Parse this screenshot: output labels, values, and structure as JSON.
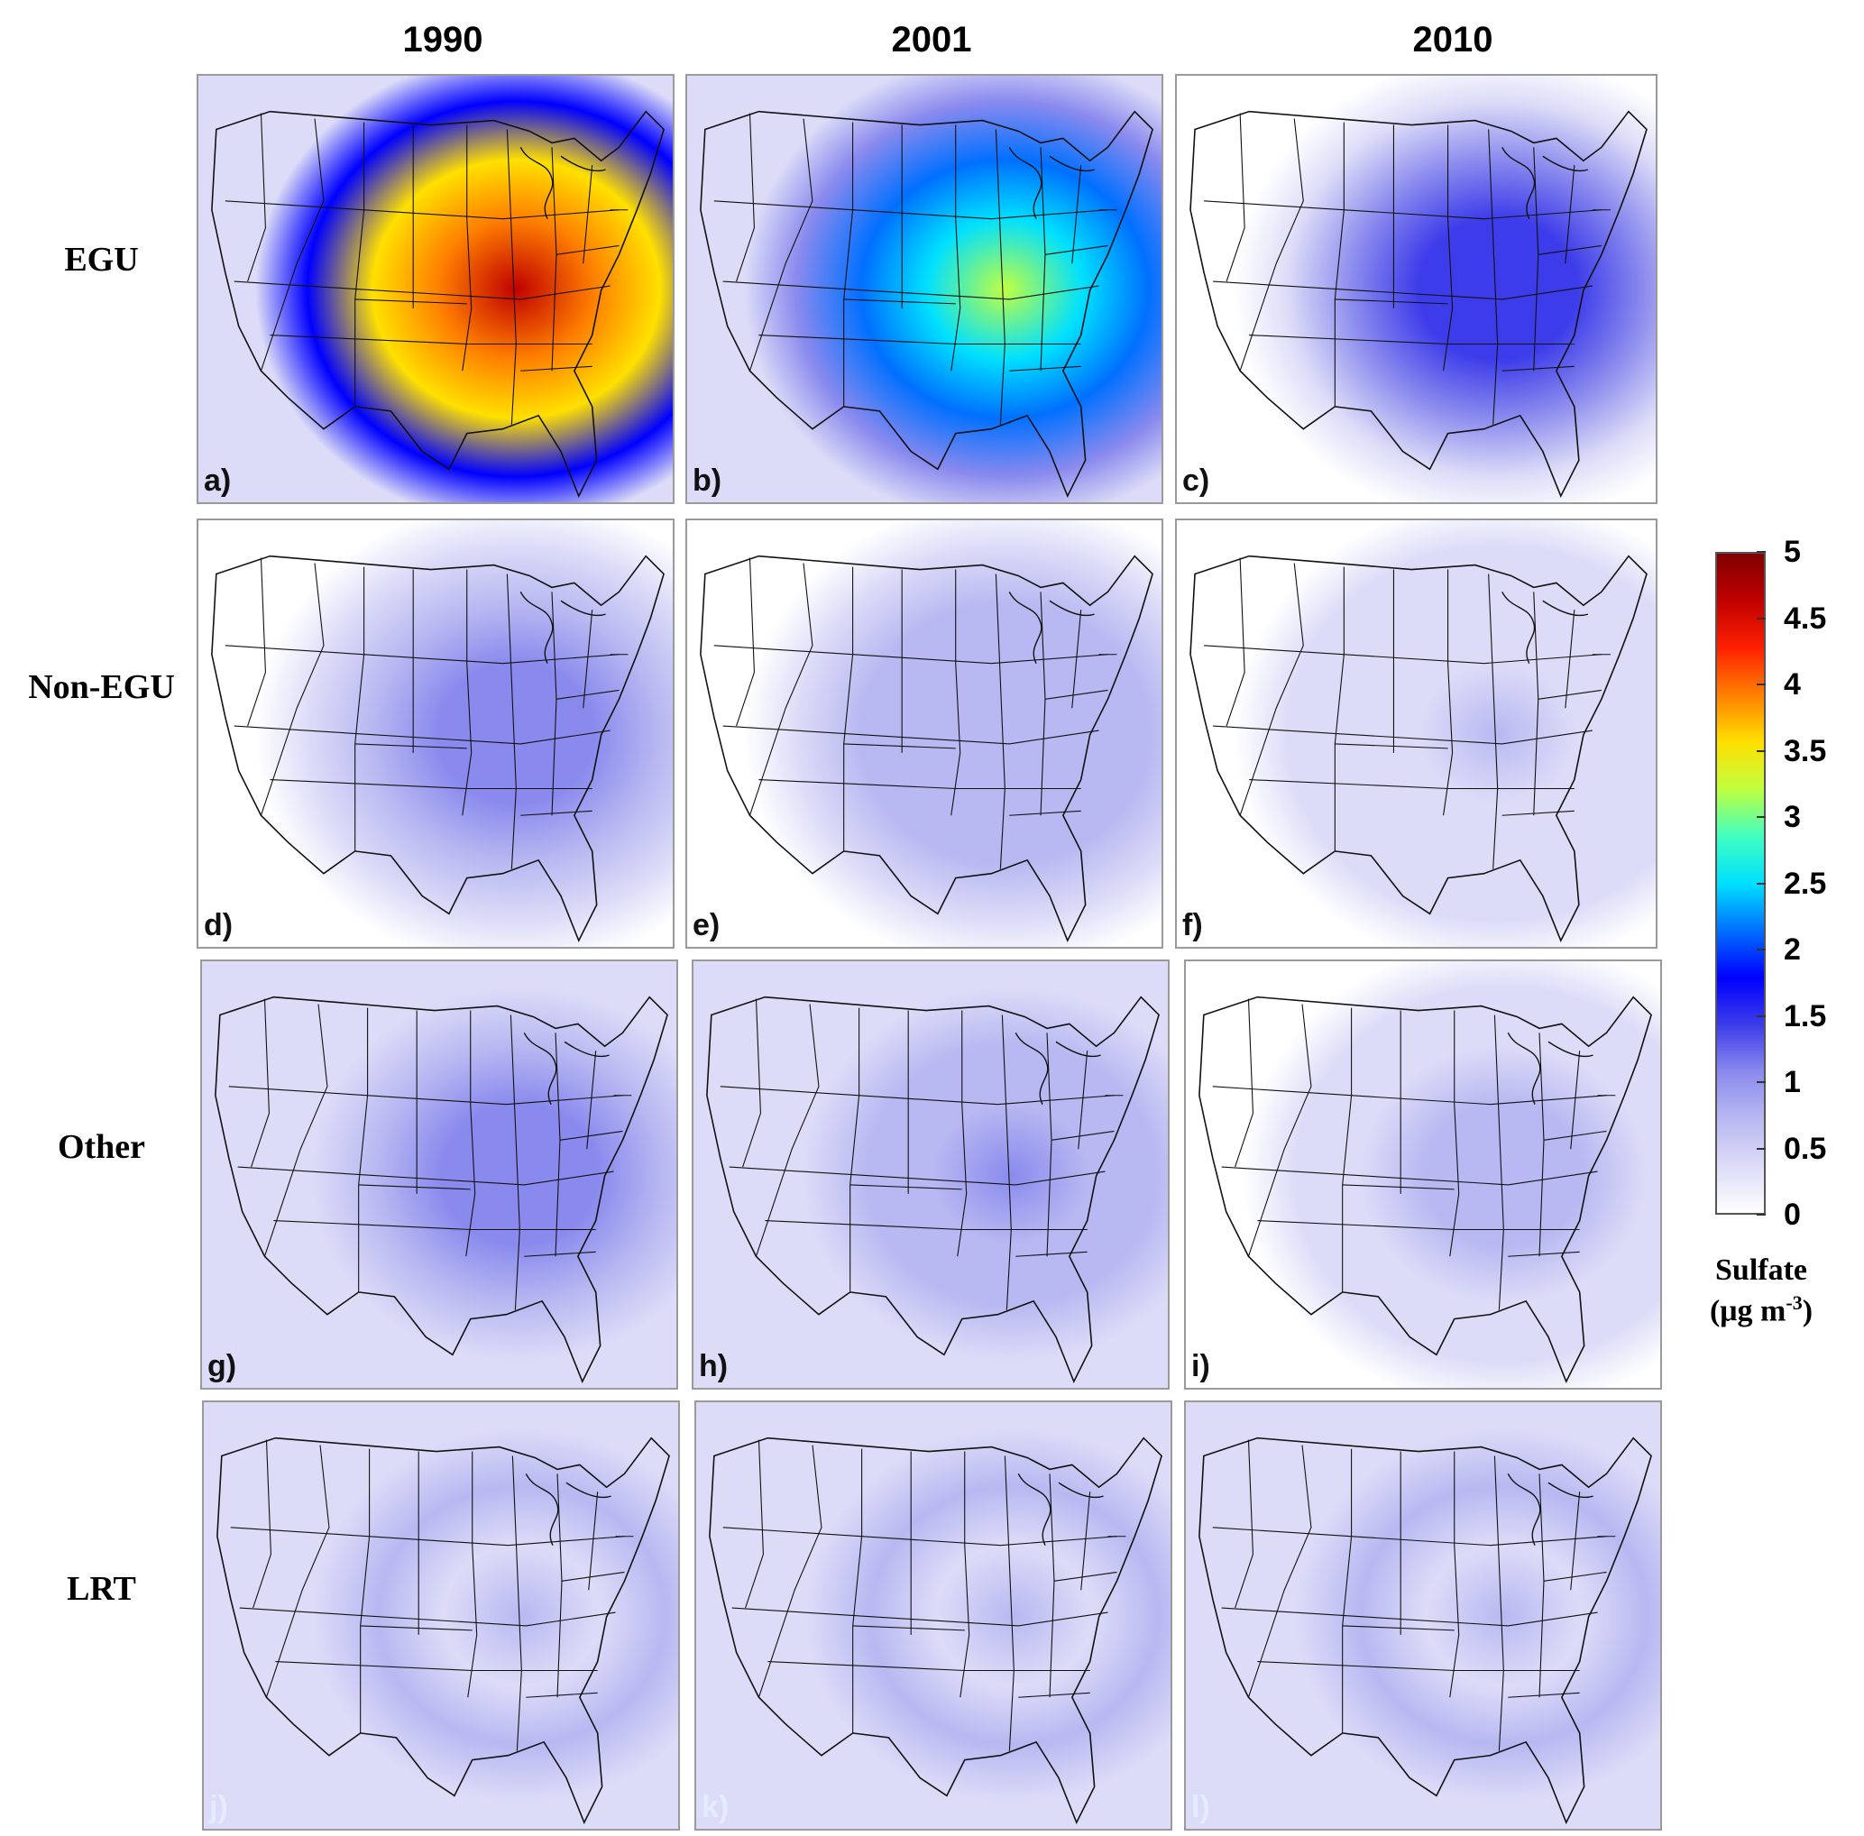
{
  "columns": [
    "1990",
    "2001",
    "2010"
  ],
  "rows": [
    "EGU",
    "Non-EGU",
    "Other",
    "LRT"
  ],
  "panel_letters": [
    "a)",
    "b)",
    "c)",
    "d)",
    "e)",
    "f)",
    "g)",
    "h)",
    "i)",
    "j)",
    "k)",
    "l)"
  ],
  "colorbar": {
    "min": 0,
    "max": 5,
    "ticks": [
      "5",
      "4.5",
      "4",
      "3.5",
      "3",
      "2.5",
      "2",
      "1.5",
      "1",
      "0.5",
      "0"
    ],
    "colors": [
      "#ffffff",
      "#dcdcf8",
      "#b8b8f2",
      "#8a8aee",
      "#3c3cea",
      "#0000ff",
      "#0070ff",
      "#00e0ff",
      "#40ffc0",
      "#c0ff40",
      "#ffe000",
      "#ff8000",
      "#ff2000",
      "#c00000",
      "#800000"
    ],
    "title_line1": "Sulfate",
    "title_line2": "(μg m",
    "title_sup": "-3",
    "title_end": ")"
  },
  "maps": [
    {
      "panel": "a)",
      "peak": 4.8,
      "east_level": 3.6,
      "west_level": 0.3
    },
    {
      "panel": "b)",
      "peak": 3.1,
      "east_level": 2.1,
      "west_level": 0.25
    },
    {
      "panel": "c)",
      "peak": 1.5,
      "east_level": 0.9,
      "west_level": 0.15
    },
    {
      "panel": "d)",
      "peak": 1.2,
      "east_level": 0.75,
      "west_level": 0.15
    },
    {
      "panel": "e)",
      "peak": 0.8,
      "east_level": 0.6,
      "west_level": 0.1
    },
    {
      "panel": "f)",
      "peak": 0.6,
      "east_level": 0.35,
      "west_level": 0.05
    },
    {
      "panel": "g)",
      "peak": 1.2,
      "east_level": 0.75,
      "west_level": 0.2
    },
    {
      "panel": "h)",
      "peak": 1.0,
      "east_level": 0.6,
      "west_level": 0.2
    },
    {
      "panel": "i)",
      "peak": 0.8,
      "east_level": 0.45,
      "west_level": 0.15
    },
    {
      "panel": "j)",
      "peak": 0.6,
      "east_level": 0.55,
      "west_level": 0.5
    },
    {
      "panel": "k)",
      "peak": 0.6,
      "east_level": 0.55,
      "west_level": 0.5
    },
    {
      "panel": "l)",
      "peak": 0.6,
      "east_level": 0.55,
      "west_level": 0.5
    }
  ]
}
